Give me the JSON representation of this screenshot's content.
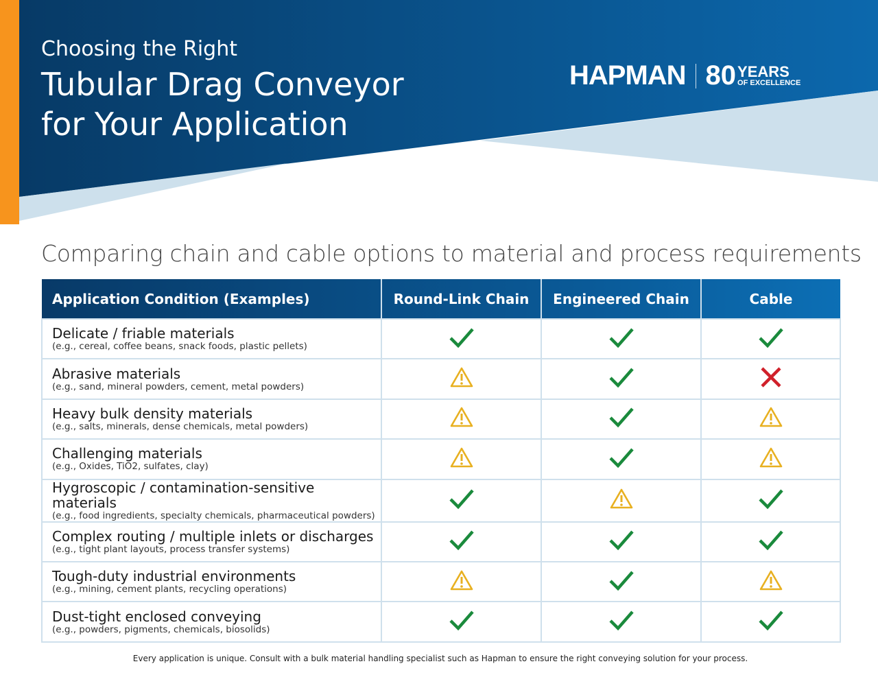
{
  "header": {
    "line1": "Choosing the Right",
    "line2": "Tubular Drag Conveyor",
    "line3": "for Your Application"
  },
  "logo": {
    "name": "HAPMAN",
    "number": "80",
    "years": "YEARS",
    "tagline": "OF EXCELLENCE"
  },
  "subtitle": "Comparing chain and cable options to material and process requirements",
  "colors": {
    "check": "#1a8a3c",
    "warning": "#e8b020",
    "cross": "#d0202a",
    "accent": "#f7941d",
    "navy": "#083a68"
  },
  "table": {
    "headers": [
      "Application Condition (Examples)",
      "Round-Link Chain",
      "Engineered Chain",
      "Cable"
    ],
    "rows": [
      {
        "condition": "Delicate / friable materials",
        "examples": "(e.g., cereal, coffee beans, snack foods, plastic pellets)",
        "ratings": [
          "check",
          "check",
          "check"
        ]
      },
      {
        "condition": "Abrasive materials",
        "examples": "(e.g., sand, mineral powders, cement, metal powders)",
        "ratings": [
          "warning",
          "check",
          "cross"
        ]
      },
      {
        "condition": "Heavy bulk density materials",
        "examples": "(e.g., salts, minerals, dense chemicals, metal powders)",
        "ratings": [
          "warning",
          "check",
          "warning"
        ]
      },
      {
        "condition": "Challenging materials",
        "examples": "(e.g., Oxides, TiO2, sulfates, clay)",
        "ratings": [
          "warning",
          "check",
          "warning"
        ]
      },
      {
        "condition": "Hygroscopic / contamination-sensitive materials",
        "examples": "(e.g., food ingredients, specialty chemicals, pharmaceutical powders)",
        "ratings": [
          "check",
          "warning",
          "check"
        ]
      },
      {
        "condition": "Complex routing / multiple inlets or discharges",
        "examples": "(e.g., tight plant layouts, process transfer systems)",
        "ratings": [
          "check",
          "check",
          "check"
        ]
      },
      {
        "condition": "Tough-duty industrial environments",
        "examples": "(e.g., mining, cement plants, recycling operations)",
        "ratings": [
          "warning",
          "check",
          "warning"
        ]
      },
      {
        "condition": "Dust-tight enclosed conveying",
        "examples": "(e.g., powders, pigments, chemicals, biosolids)",
        "ratings": [
          "check",
          "check",
          "check"
        ]
      }
    ]
  },
  "footnote": "Every application is unique. Consult with a bulk material handling specialist such as Hapman to ensure the right conveying solution for your process."
}
